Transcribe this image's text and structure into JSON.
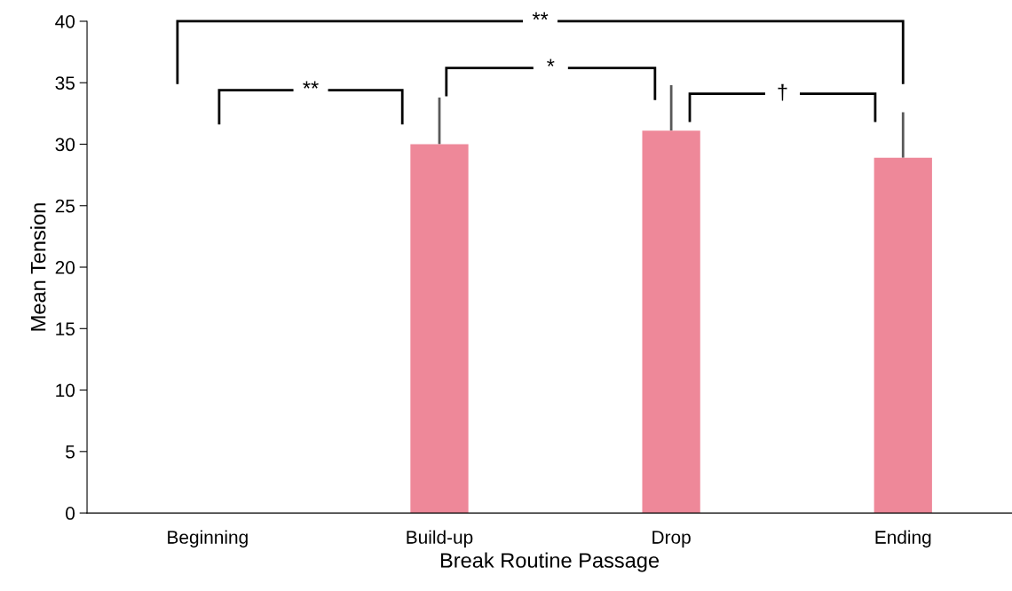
{
  "chart_data": {
    "type": "bar",
    "xlabel": "Break Routine Passage",
    "ylabel": "Mean Tension",
    "categories": [
      "Beginning",
      "Build-up",
      "Drop",
      "Ending"
    ],
    "values": [
      null,
      30.0,
      31.1,
      28.9
    ],
    "errors": [
      null,
      [
        30.0,
        33.8
      ],
      [
        31.1,
        34.8
      ],
      [
        28.9,
        32.6
      ]
    ],
    "color": "#ee8899",
    "ylim": [
      0,
      40
    ],
    "yticks": [
      0,
      5,
      10,
      15,
      20,
      25,
      30,
      35,
      40
    ],
    "grid": false,
    "annotations": [
      "**",
      "**",
      "*",
      "†"
    ]
  }
}
